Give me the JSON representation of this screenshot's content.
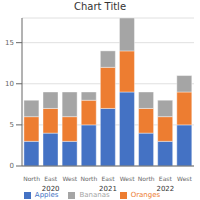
{
  "chart_data": {
    "type": "bar",
    "title": "Chart Title",
    "categories": [
      "North",
      "East",
      "West",
      "North",
      "East",
      "West",
      "North",
      "East",
      "West"
    ],
    "category_groups": [
      "2020",
      "2021",
      "2022"
    ],
    "series": [
      {
        "name": "Apples",
        "color": "#4472C4",
        "values": [
          3,
          4,
          3,
          5,
          7,
          9,
          4,
          3,
          5
        ]
      },
      {
        "name": "Oranges",
        "color": "#ED7D31",
        "values": [
          3,
          3,
          3,
          3,
          5,
          5,
          3,
          3,
          4
        ]
      },
      {
        "name": "Bananas",
        "color": "#A5A5A5",
        "values": [
          2,
          2,
          3,
          1,
          2,
          4,
          2,
          2,
          2
        ]
      }
    ],
    "stacked": true,
    "ylim": [
      0,
      18
    ],
    "yticks": [
      0,
      5,
      10,
      15
    ],
    "grid": true,
    "legend": "bottom"
  }
}
